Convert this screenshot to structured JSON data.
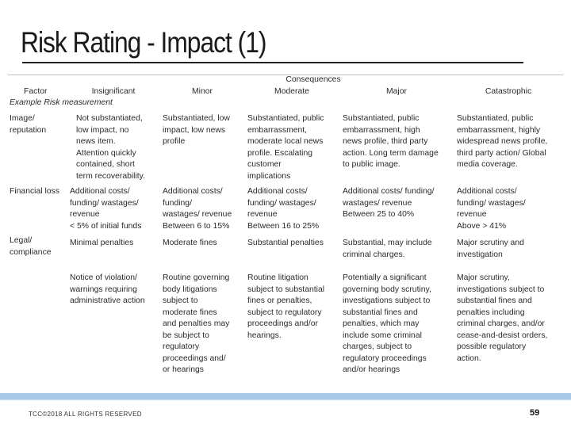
{
  "slide": {
    "title": "Risk Rating - Impact (1)",
    "footer": "TCC©2018 ALL RIGHTS RESERVED",
    "page_number": "59"
  },
  "table": {
    "group_header": "Consequences",
    "factor_header": "Factor",
    "example_label": "Example Risk measurement",
    "columns": [
      "Insignificant",
      "Minor",
      "Moderate",
      "Major",
      "Catastrophic"
    ],
    "rows": [
      {
        "factor": [
          "Image/",
          "reputation"
        ],
        "cells": [
          [
            "Not substantiated,",
            "low impact, no",
            "news item.",
            "Attention quickly",
            "contained, short",
            "term recoverability."
          ],
          [
            "Substantiated, low",
            "impact, low news",
            "profile"
          ],
          [
            "Substantiated, public",
            "embarrassment,",
            "moderate local news",
            "profile. Escalating",
            "customer",
            "implications"
          ],
          [
            "Substantiated, public",
            "embarrassment, high",
            "news profile, third party",
            "action. Long term damage",
            "to public image."
          ],
          [
            "Substantiated, public",
            "embarrassment, highly",
            "widespread news profile,",
            "third party action/ Global",
            "media coverage."
          ]
        ]
      },
      {
        "factor": [
          "Financial loss"
        ],
        "cells": [
          [
            "Additional costs/",
            "funding/ wastages/",
            "revenue",
            "< 5% of initial funds"
          ],
          [
            "Additional costs/",
            "funding/",
            "wastages/ revenue",
            "Between 6 to 15%"
          ],
          [
            "Additional costs/",
            "funding/ wastages/",
            "revenue",
            "Between 16 to 25%"
          ],
          [
            "Additional costs/ funding/",
            "wastages/ revenue",
            "Between 25 to 40%"
          ],
          [
            "Additional costs/",
            "funding/ wastages/",
            "revenue",
            "Above > 41%"
          ]
        ]
      },
      {
        "factor": [
          "Legal/",
          "compliance"
        ],
        "cells": [
          [
            "Minimal penalties"
          ],
          [
            "Moderate fines"
          ],
          [
            "Substantial penalties"
          ],
          [
            "Substantial, may include",
            "criminal charges."
          ],
          [
            "Major scrutiny and",
            "investigation"
          ]
        ]
      },
      {
        "factor": [],
        "cells": [
          [
            "Notice of violation/",
            "warnings requiring",
            "administrative action"
          ],
          [
            "Routine governing",
            "body litigations",
            "subject to",
            "moderate fines",
            "and penalties may",
            "be subject to",
            "regulatory",
            "proceedings and/",
            "or hearings"
          ],
          [
            "Routine litigation",
            "subject to substantial",
            "fines or penalties,",
            "subject to regulatory",
            "proceedings and/or",
            "hearings."
          ],
          [
            "Potentially a significant",
            "governing body scrutiny,",
            "investigations subject to",
            "substantial fines and",
            "penalties, which may",
            "include some criminal",
            "charges, subject to",
            "regulatory proceedings",
            "and/or hearings"
          ],
          [
            "Major scrutiny,",
            "investigations subject to",
            "substantial fines and",
            "penalties including",
            "criminal charges, and/or",
            "cease-and-desist orders,",
            "possible regulatory",
            "action."
          ]
        ]
      }
    ]
  }
}
